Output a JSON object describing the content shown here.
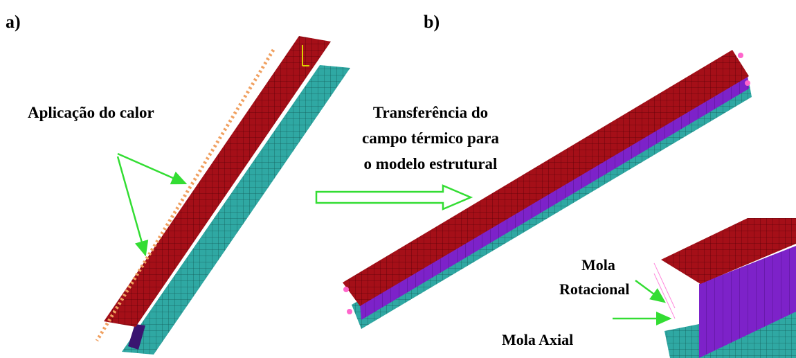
{
  "panel_a": {
    "label": "a)",
    "annotation": "Aplicação do calor"
  },
  "panel_b": {
    "label": "b)",
    "annotation_lines": [
      "Transferência do",
      "campo térmico para",
      "o modelo estrutural"
    ]
  },
  "inset": {
    "spring_rotational": [
      "Mola",
      "Rotacional"
    ],
    "spring_axial": "Mola Axial"
  }
}
